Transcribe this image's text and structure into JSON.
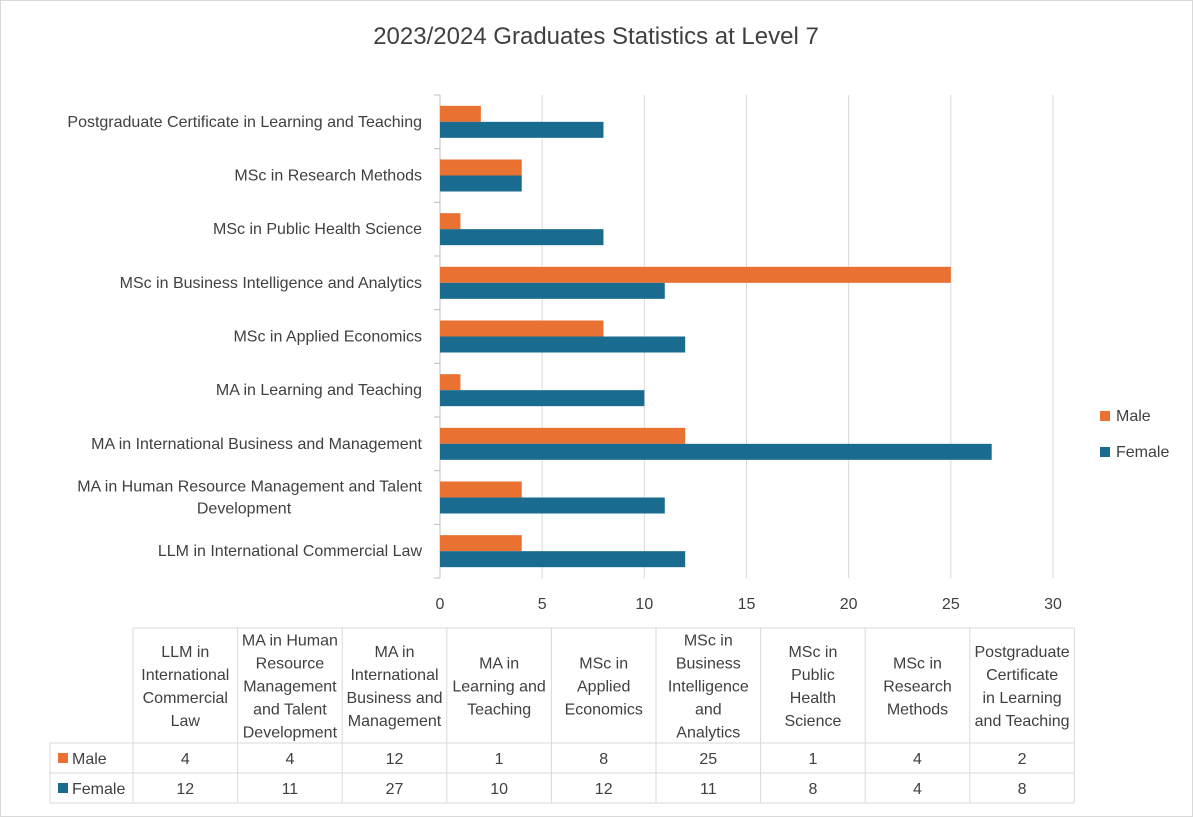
{
  "chart_data": {
    "type": "bar",
    "orientation": "horizontal",
    "title": "2023/2024 Graduates Statistics at Level 7",
    "categories": [
      "LLM in International Commercial Law",
      "MA in Human Resource Management and Talent Development",
      "MA in International Business and Management",
      "MA in Learning and Teaching",
      "MSc in Applied Economics",
      "MSc in Business Intelligence and Analytics",
      "MSc in Public Health Science",
      "MSc in Research Methods",
      "Postgraduate Certificate in Learning and Teaching"
    ],
    "series": [
      {
        "name": "Male",
        "color": "#e97132",
        "values": [
          4,
          4,
          12,
          1,
          8,
          25,
          1,
          4,
          2
        ]
      },
      {
        "name": "Female",
        "color": "#196b8f",
        "values": [
          12,
          11,
          27,
          10,
          12,
          11,
          8,
          4,
          8
        ]
      }
    ],
    "xlim": [
      0,
      30
    ],
    "xticks": [
      0,
      5,
      10,
      15,
      20,
      25,
      30
    ],
    "grid": true,
    "legend": "right",
    "data_table": true
  }
}
